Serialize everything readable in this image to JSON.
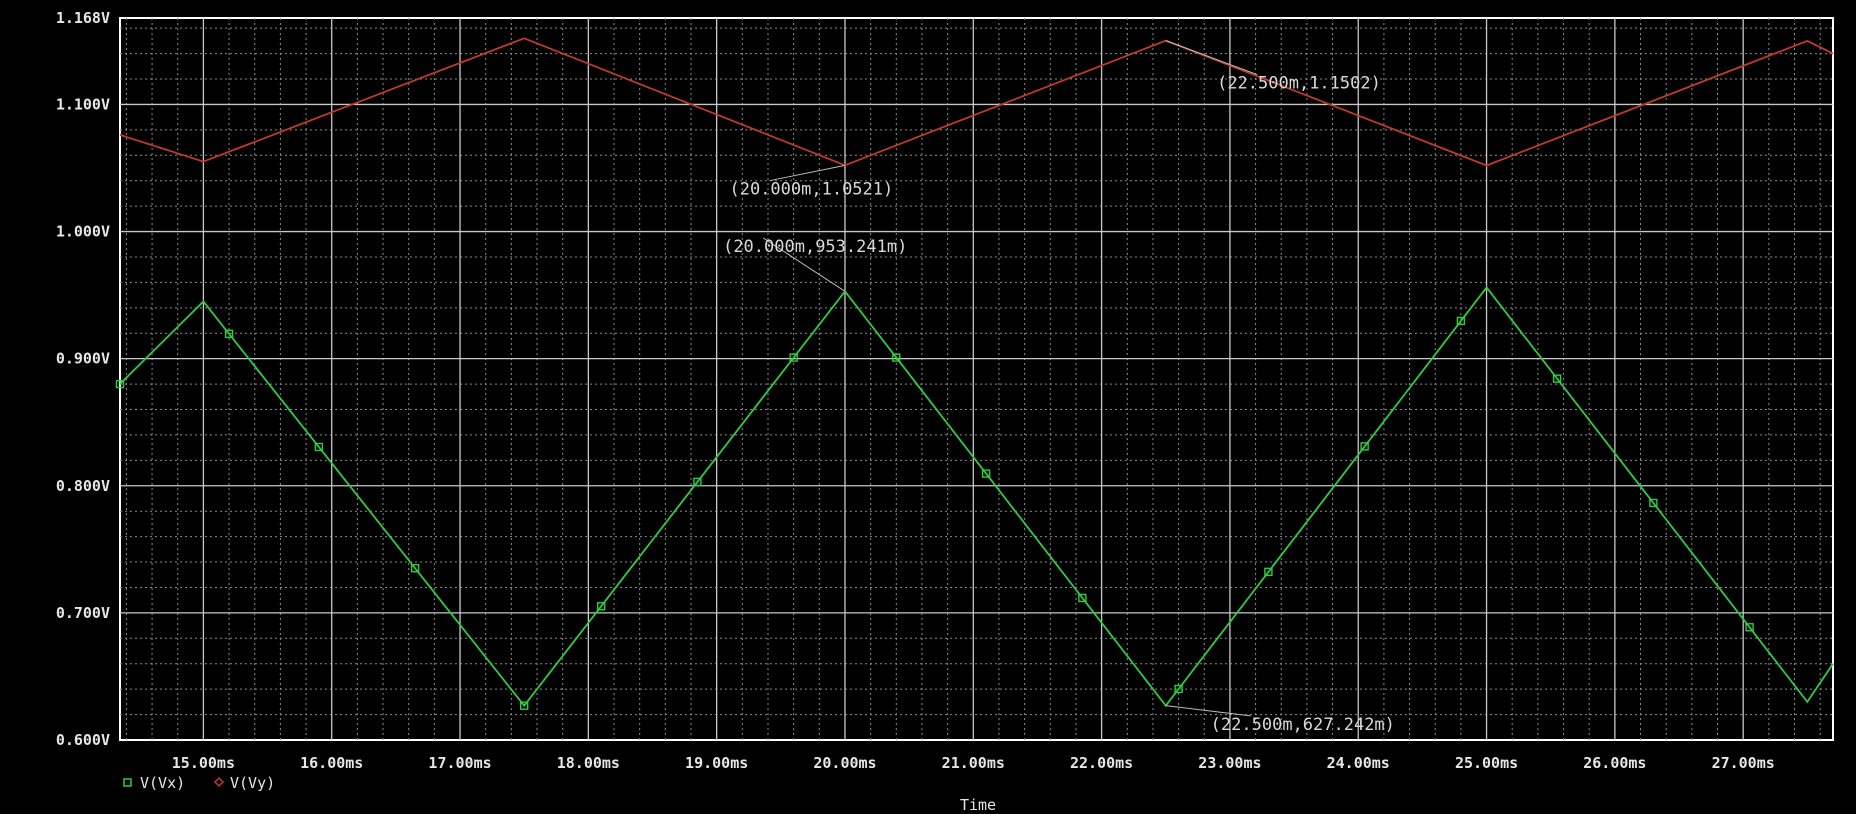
{
  "chart_data": {
    "type": "line",
    "xlabel": "Time",
    "ylabel": "",
    "xlim": [
      14.35,
      27.7
    ],
    "ylim": [
      0.6,
      1.168
    ],
    "grid": true,
    "legend_position": "bottom-left",
    "x_ticks": [
      {
        "value": 15,
        "label": "15.00ms"
      },
      {
        "value": 16,
        "label": "16.00ms"
      },
      {
        "value": 17,
        "label": "17.00ms"
      },
      {
        "value": 18,
        "label": "18.00ms"
      },
      {
        "value": 19,
        "label": "19.00ms"
      },
      {
        "value": 20,
        "label": "20.00ms"
      },
      {
        "value": 21,
        "label": "21.00ms"
      },
      {
        "value": 22,
        "label": "22.00ms"
      },
      {
        "value": 23,
        "label": "23.00ms"
      },
      {
        "value": 24,
        "label": "24.00ms"
      },
      {
        "value": 25,
        "label": "25.00ms"
      },
      {
        "value": 26,
        "label": "26.00ms"
      },
      {
        "value": 27,
        "label": "27.00ms"
      }
    ],
    "y_ticks": [
      {
        "value": 0.6,
        "label": "0.600V"
      },
      {
        "value": 0.7,
        "label": "0.700V"
      },
      {
        "value": 0.8,
        "label": "0.800V"
      },
      {
        "value": 0.9,
        "label": "0.900V"
      },
      {
        "value": 1.0,
        "label": "1.000V"
      },
      {
        "value": 1.1,
        "label": "1.100V"
      },
      {
        "value": 1.168,
        "label": "1.168V"
      }
    ],
    "series": [
      {
        "name": "V(Vx)",
        "color": "#2ecc40",
        "marker": "square",
        "x": [
          14.35,
          15.0,
          17.5,
          20.0,
          22.5,
          25.0,
          27.5,
          27.7
        ],
        "y": [
          0.88,
          0.945,
          0.627,
          0.953,
          0.627,
          0.956,
          0.63,
          0.66
        ],
        "marker_x": [
          14.35,
          15.2,
          15.9,
          16.65,
          17.5,
          18.1,
          18.85,
          19.6,
          20.4,
          21.1,
          21.85,
          22.6,
          23.3,
          24.05,
          24.8,
          25.55,
          26.3,
          27.05
        ]
      },
      {
        "name": "V(Vy)",
        "color": "#c0392b",
        "marker": "diamond",
        "x": [
          14.35,
          15.0,
          17.5,
          20.0,
          22.5,
          25.0,
          27.5,
          27.7
        ],
        "y": [
          1.076,
          1.055,
          1.152,
          1.0521,
          1.1502,
          1.052,
          1.15,
          1.14
        ],
        "marker_x": []
      }
    ],
    "annotations": [
      {
        "text": "(22.500m,1.1502)",
        "x": 22.5,
        "y": 1.1502,
        "tx": 22.9,
        "ty": 1.1125
      },
      {
        "text": "(20.000m,1.0521)",
        "x": 20.0,
        "y": 1.0521,
        "tx": 19.1,
        "ty": 1.029
      },
      {
        "text": "(20.000m,953.241m)",
        "x": 20.0,
        "y": 0.953,
        "tx": 19.05,
        "ty": 0.984
      },
      {
        "text": "(22.500m,627.242m)",
        "x": 22.5,
        "y": 0.627,
        "tx": 22.85,
        "ty": 0.608
      }
    ]
  }
}
